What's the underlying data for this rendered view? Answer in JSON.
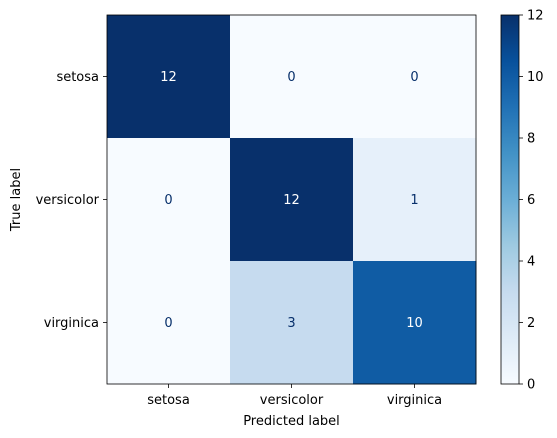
{
  "chart_data": {
    "type": "heatmap",
    "title": "",
    "xlabel": "Predicted label",
    "ylabel": "True label",
    "x_categories": [
      "setosa",
      "versicolor",
      "virginica"
    ],
    "y_categories": [
      "setosa",
      "versicolor",
      "virginica"
    ],
    "values": [
      [
        12,
        0,
        0
      ],
      [
        0,
        12,
        1
      ],
      [
        0,
        3,
        10
      ]
    ],
    "colorbar": {
      "colormap": "Blues",
      "range": [
        0,
        12
      ],
      "ticks": [
        0,
        2,
        4,
        6,
        8,
        10,
        12
      ]
    },
    "grid": false
  }
}
